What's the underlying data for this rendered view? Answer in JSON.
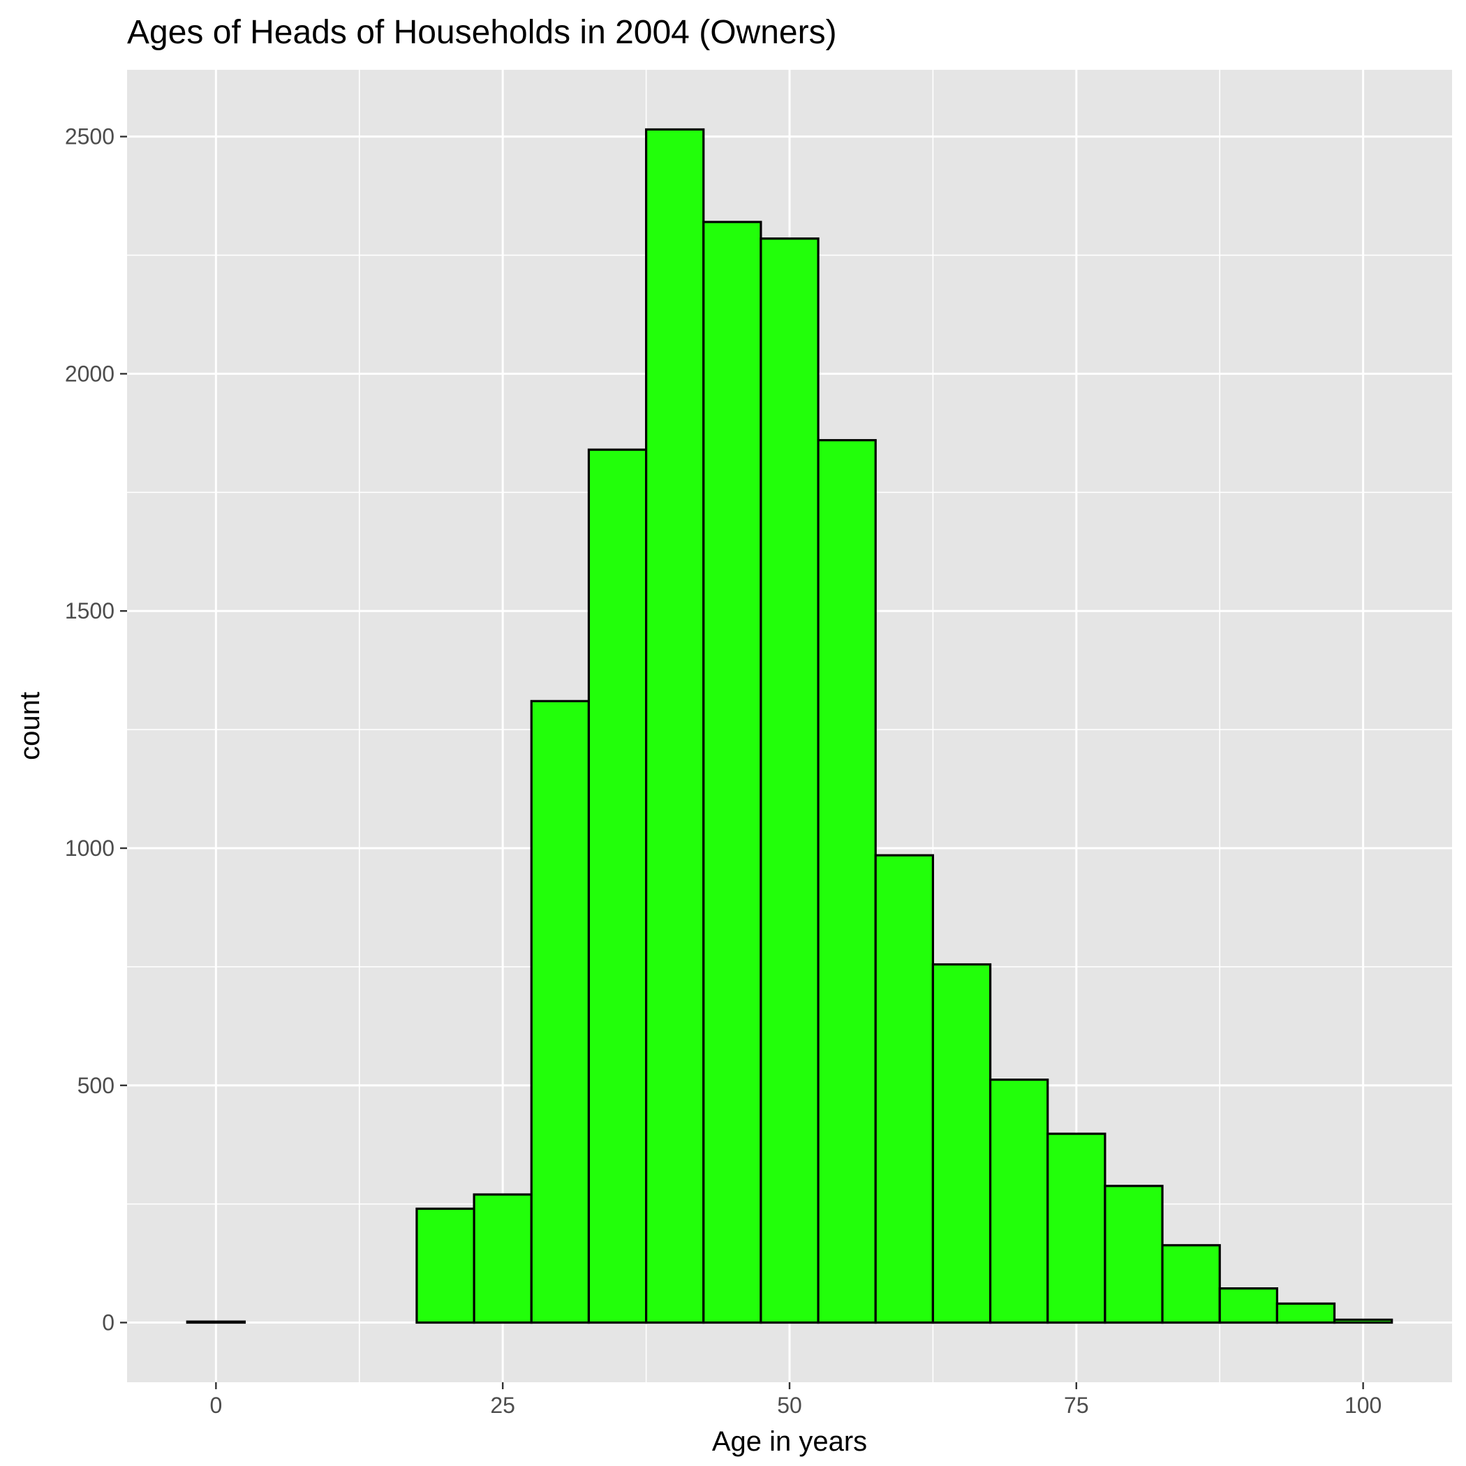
{
  "chart_data": {
    "type": "bar",
    "title": "Ages of Heads of Households in 2004 (Owners)",
    "xlabel": "Age in years",
    "ylabel": "count",
    "bin_width": 5,
    "bins": [
      {
        "center": 0,
        "count": 2
      },
      {
        "center": 5,
        "count": 0
      },
      {
        "center": 10,
        "count": 0
      },
      {
        "center": 15,
        "count": 0
      },
      {
        "center": 20,
        "count": 240
      },
      {
        "center": 25,
        "count": 270
      },
      {
        "center": 30,
        "count": 1310
      },
      {
        "center": 35,
        "count": 1840
      },
      {
        "center": 40,
        "count": 2515
      },
      {
        "center": 45,
        "count": 2320
      },
      {
        "center": 50,
        "count": 2285
      },
      {
        "center": 55,
        "count": 1860
      },
      {
        "center": 60,
        "count": 985
      },
      {
        "center": 65,
        "count": 755
      },
      {
        "center": 70,
        "count": 512
      },
      {
        "center": 75,
        "count": 398
      },
      {
        "center": 80,
        "count": 288
      },
      {
        "center": 85,
        "count": 163
      },
      {
        "center": 90,
        "count": 72
      },
      {
        "center": 95,
        "count": 40
      },
      {
        "center": 100,
        "count": 6
      }
    ],
    "xlim": [
      -7.75,
      107.75
    ],
    "ylim": [
      -125.75,
      2640.75
    ],
    "x_ticks": [
      0,
      25,
      50,
      75,
      100
    ],
    "x_tick_labels": [
      "0",
      "25",
      "50",
      "75",
      "100"
    ],
    "y_ticks": [
      0,
      500,
      1000,
      1500,
      2000,
      2500
    ],
    "y_tick_labels": [
      "0",
      "500",
      "1000",
      "1500",
      "2000",
      "2500"
    ],
    "grid": true,
    "legend": "none",
    "colors": {
      "bar_fill": "#22ff0a",
      "bar_stroke": "#000000",
      "panel_background": "#e5e5e5",
      "grid": "#ffffff",
      "tick_text": "#4d4d4d",
      "tick_mark": "#333333"
    }
  }
}
